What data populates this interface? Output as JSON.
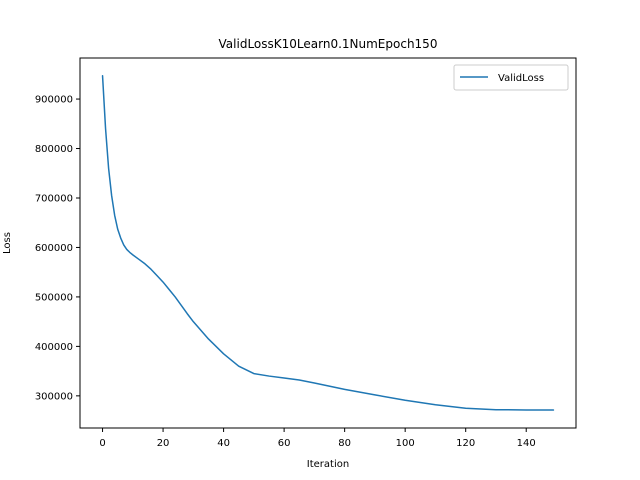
{
  "chart_data": {
    "type": "line",
    "title": "ValidLossK10Learn0.1NumEpoch150",
    "xlabel": "Iteration",
    "ylabel": "Loss",
    "xlim": [
      -7.45,
      156.45
    ],
    "ylim": [
      235000,
      983000
    ],
    "xticks": [
      0,
      20,
      40,
      60,
      80,
      100,
      120,
      140
    ],
    "yticks": [
      300000,
      400000,
      500000,
      600000,
      700000,
      800000,
      900000
    ],
    "grid": false,
    "legend_position": "top-right",
    "series": [
      {
        "name": "ValidLoss",
        "color": "#1f77b4",
        "x": [
          0,
          1,
          2,
          3,
          4,
          5,
          6,
          7,
          8,
          9,
          10,
          12,
          14,
          16,
          18,
          20,
          22,
          24,
          26,
          28,
          30,
          35,
          40,
          45,
          50,
          55,
          60,
          65,
          70,
          80,
          90,
          100,
          110,
          120,
          130,
          140,
          149
        ],
        "y": [
          947000,
          840000,
          760000,
          705000,
          665000,
          637000,
          619000,
          605000,
          596000,
          590000,
          585000,
          576000,
          567000,
          556000,
          543000,
          530000,
          515000,
          500000,
          483000,
          466000,
          450000,
          415000,
          385000,
          360000,
          345000,
          340000,
          336000,
          332000,
          326000,
          313000,
          302000,
          291000,
          282000,
          275000,
          272000,
          271500,
          271500
        ]
      }
    ]
  }
}
